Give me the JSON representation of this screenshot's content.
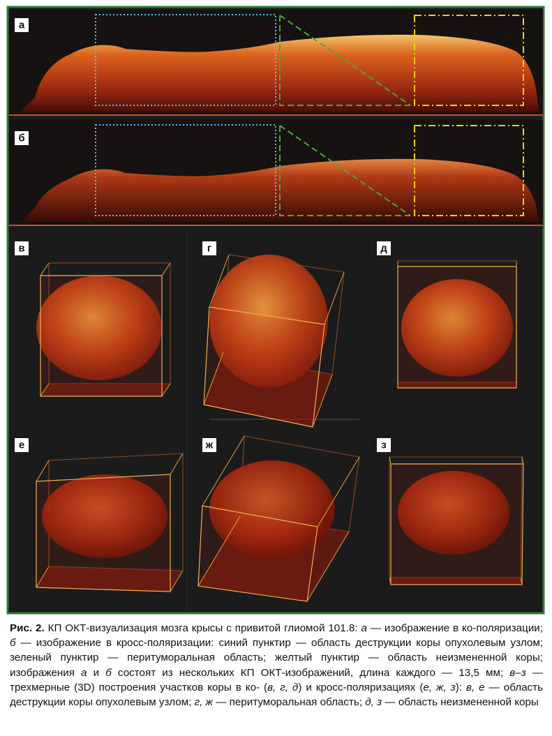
{
  "figure": {
    "panels": [
      "а",
      "б",
      "в",
      "г",
      "д",
      "е",
      "ж",
      "з"
    ],
    "caption": {
      "title": "Рис. 2.",
      "segments": [
        " КП ОКТ-визуализация мозга крысы с привитой глиомой 101.8: ",
        "а",
        " — изображение в ко-поляризации; ",
        "б",
        " — изображение в кросс-поляризации: синий пунктир — область деструкции коры опухолевым узлом; зеленый пунктир — перитуморальная область; желтый пунктир — область неизмененной коры; изображения ",
        "а",
        " и ",
        "б",
        " состоят из нескольких КП ОКТ-изображений, длина каждого — 13,5 мм; ",
        "в–з",
        " — трехмерные (3D) построения участков коры в ко- (",
        "в, г, д",
        ") и кросс-поляризациях (",
        "е, ж, з",
        "): ",
        "в, е",
        " — область деструкции коры опухолевым узлом; ",
        "г, ж",
        " — перитуморальная область; ",
        "д, з",
        " — область неизмененной коры"
      ]
    }
  }
}
